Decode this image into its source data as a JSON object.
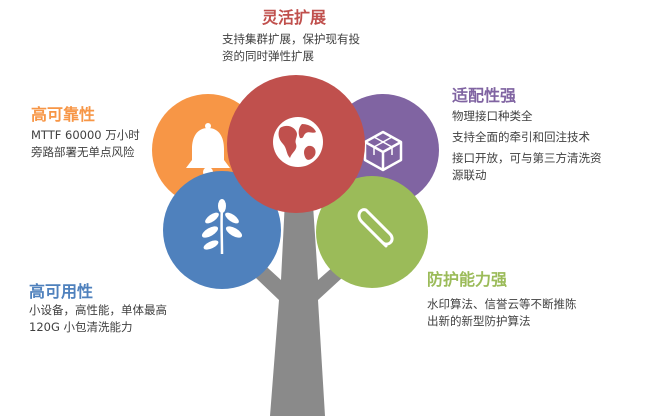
{
  "colors": {
    "trunk": "#8a8a8a",
    "top": "#c0504d",
    "left_upper": "#f79646",
    "right_upper": "#8064a2",
    "left_lower": "#4f81bd",
    "right_lower": "#9bbb59",
    "icon": "#ffffff"
  },
  "circles": {
    "top": {
      "icon": "globe-icon"
    },
    "left_upper": {
      "icon": "bell-icon"
    },
    "right_upper": {
      "icon": "cube-icon"
    },
    "left_lower": {
      "icon": "leaf-icon"
    },
    "right_lower": {
      "icon": "paperclip-icon"
    }
  },
  "features": {
    "flexible": {
      "title": "灵活扩展",
      "lines": [
        "支持集群扩展，保护现有投",
        "资的同时弹性扩展"
      ]
    },
    "reliable": {
      "title": "高可靠性",
      "lines": [
        "MTTF 60000 万小时",
        "旁路部署无单点风险"
      ]
    },
    "adaptable": {
      "title": "适配性强",
      "lines": [
        "物理接口种类全",
        "支持全面的牵引和回注技术",
        "接口开放，可与第三方清洗资",
        "源联动"
      ]
    },
    "usable": {
      "title": "高可用性",
      "lines": [
        "小设备，高性能，单体最高",
        "120G 小包清洗能力"
      ]
    },
    "protection": {
      "title": "防护能力强",
      "lines": [
        "水印算法、信誉云等不断推陈",
        "出新的新型防护算法"
      ]
    }
  }
}
